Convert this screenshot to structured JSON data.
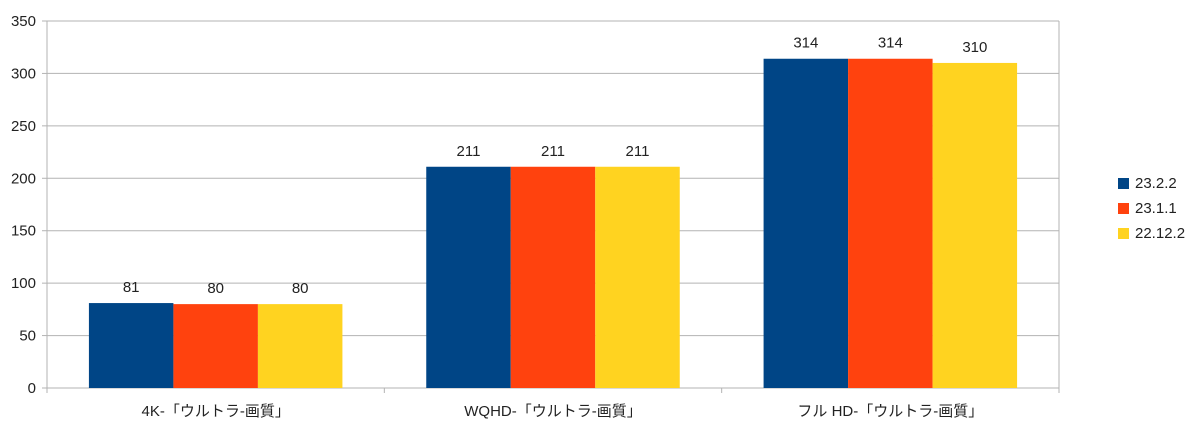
{
  "chart_data": {
    "type": "bar",
    "title": "",
    "xlabel": "",
    "ylabel": "",
    "ylim": [
      0,
      350
    ],
    "yticks": [
      0,
      50,
      100,
      150,
      200,
      250,
      300,
      350
    ],
    "grid": true,
    "legend_position": "right",
    "categories": [
      "4K-「ウルトラ-画質」",
      "WQHD-「ウルトラ-画質」",
      "フル HD-「ウルトラ-画質」"
    ],
    "series": [
      {
        "name": "23.2.2",
        "color": "#004586",
        "values": [
          81,
          211,
          314
        ]
      },
      {
        "name": "23.1.1",
        "color": "#ff420e",
        "values": [
          80,
          211,
          314
        ]
      },
      {
        "name": "22.12.2",
        "color": "#ffd320",
        "values": [
          80,
          211,
          310
        ]
      }
    ]
  }
}
